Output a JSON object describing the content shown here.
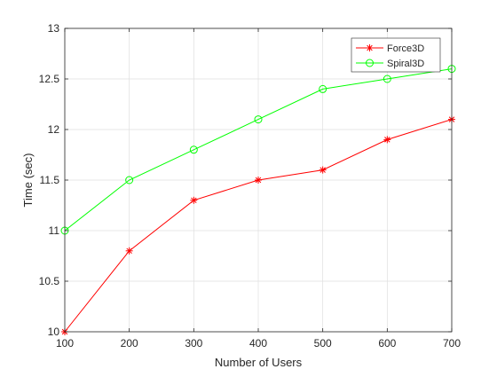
{
  "chart_data": {
    "type": "line",
    "title": "",
    "xlabel": "Number of Users",
    "ylabel": "Time (sec)",
    "xlim": [
      100,
      700
    ],
    "ylim": [
      10,
      13
    ],
    "xticks": [
      100,
      200,
      300,
      400,
      500,
      600,
      700
    ],
    "yticks": [
      10,
      10.5,
      11,
      11.5,
      12,
      12.5,
      13
    ],
    "xtick_labels": [
      "100",
      "200",
      "300",
      "400",
      "500",
      "600",
      "700"
    ],
    "ytick_labels": [
      "10",
      "10.5",
      "11",
      "11.5",
      "12",
      "12.5",
      "13"
    ],
    "grid": true,
    "legend_position": "top-right",
    "x": [
      100,
      200,
      300,
      400,
      500,
      600,
      700
    ],
    "series": [
      {
        "name": "Force3D",
        "color": "#ff0000",
        "marker": "asterisk",
        "values": [
          10.0,
          10.8,
          11.3,
          11.5,
          11.6,
          11.9,
          12.1
        ]
      },
      {
        "name": "Spiral3D",
        "color": "#00ff00",
        "marker": "circle",
        "values": [
          11.0,
          11.5,
          11.8,
          12.1,
          12.4,
          12.5,
          12.6
        ]
      }
    ]
  }
}
